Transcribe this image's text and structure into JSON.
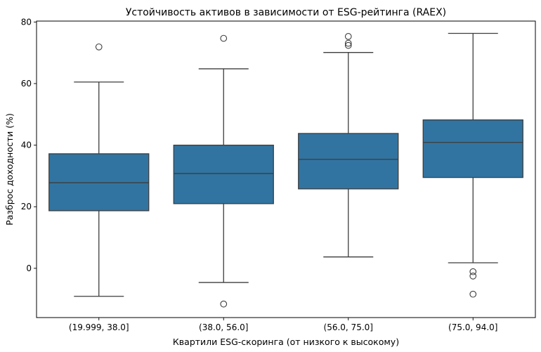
{
  "chart_data": {
    "type": "box",
    "title": "Устойчивость активов в зависимости от ESG-рейтинга (RAEX)",
    "xlabel": "Квартили ESG-скоринга (от низкого к высокому)",
    "ylabel": "Разброс доходности (%)",
    "categories": [
      "(19.999, 38.0]",
      "(38.0, 56.0]",
      "(56.0, 75.0]",
      "(75.0, 94.0]"
    ],
    "ylim": [
      -16,
      80.3
    ],
    "yticks": [
      0,
      20,
      40,
      60,
      80
    ],
    "grid": false,
    "box_color": "#3274a1",
    "line_color": "#3d3d3d",
    "boxes": [
      {
        "whisker_low": -9.1,
        "q1": 18.7,
        "median": 27.8,
        "q3": 37.2,
        "whisker_high": 60.5,
        "outliers": [
          71.9
        ]
      },
      {
        "whisker_low": -4.6,
        "q1": 21.0,
        "median": 30.8,
        "q3": 40.0,
        "whisker_high": 64.8,
        "outliers": [
          74.7,
          -11.6
        ]
      },
      {
        "whisker_low": 3.7,
        "q1": 25.8,
        "median": 35.4,
        "q3": 43.8,
        "whisker_high": 70.1,
        "outliers": [
          75.3,
          73.1,
          72.4
        ]
      },
      {
        "whisker_low": 1.8,
        "q1": 29.5,
        "median": 40.9,
        "q3": 48.2,
        "whisker_high": 76.3,
        "outliers": [
          -1.1,
          -2.5,
          -8.4
        ]
      }
    ]
  }
}
